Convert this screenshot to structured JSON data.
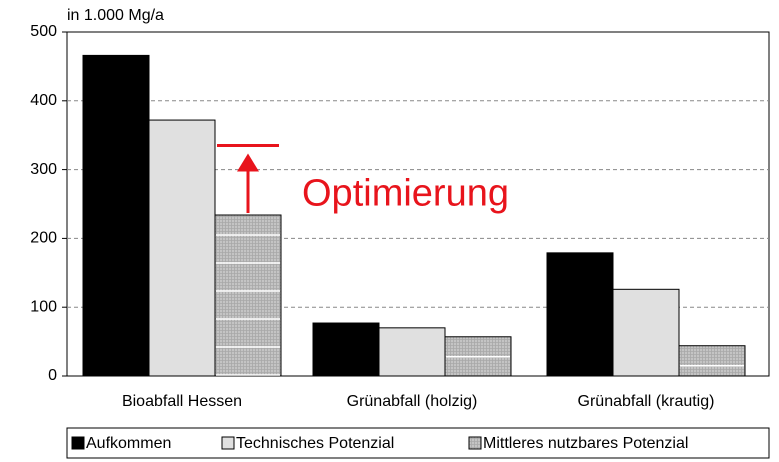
{
  "chart_data": {
    "type": "bar",
    "unit_label": "in 1.000 Mg/a",
    "categories": [
      "Bioabfall Hessen",
      "Grünabfall (holzig)",
      "Grünabfall (krautig)"
    ],
    "series": [
      {
        "name": "Aufkommen",
        "color": "#000000",
        "values": [
          466,
          77,
          179
        ]
      },
      {
        "name": "Technisches Potenzial",
        "color": "#e0e0e0",
        "values": [
          372,
          70,
          126
        ]
      },
      {
        "name": "Mittleres nutzbares Potenzial",
        "color": "#bdbdbd",
        "values": [
          234,
          57,
          44
        ]
      }
    ],
    "ylim": [
      0,
      500
    ],
    "yticks": [
      0,
      100,
      200,
      300,
      400,
      500
    ],
    "grid": true,
    "legend": "bottom",
    "annotation": {
      "text": "Optimierung",
      "target": 335,
      "color": "#e8141c"
    }
  }
}
